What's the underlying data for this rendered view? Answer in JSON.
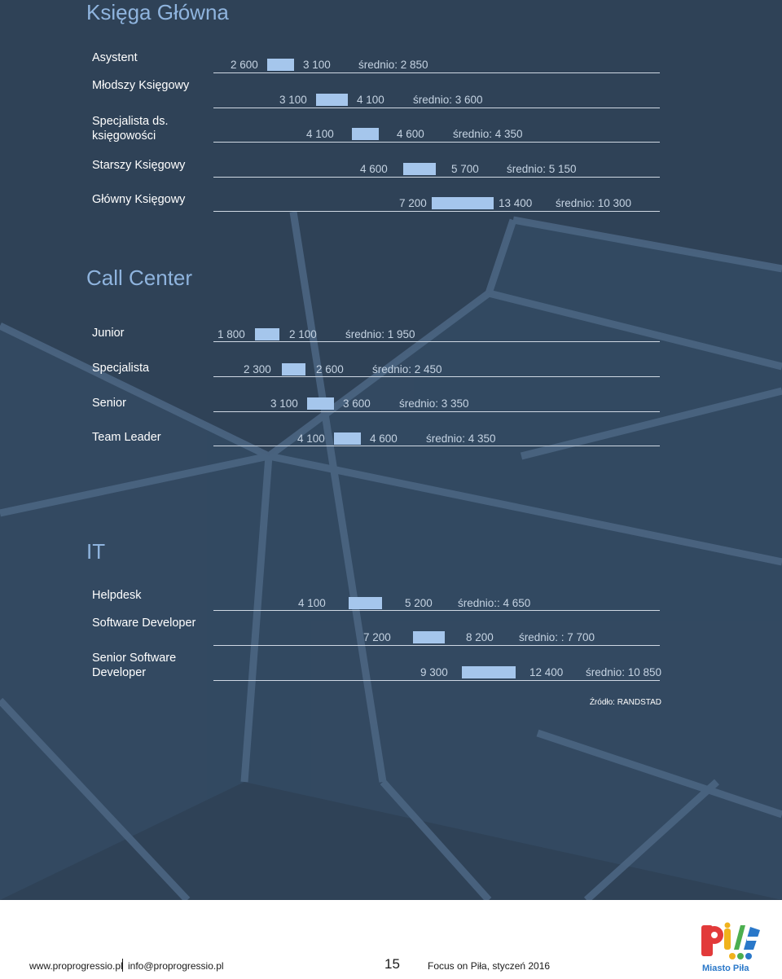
{
  "sections": [
    {
      "id": "ksiega",
      "title": "Księga Główna",
      "rows": [
        {
          "label": "Asystent",
          "min": "2 600",
          "max": "3 100",
          "avg": "średnio: 2 850",
          "min_value": 2600,
          "max_value": 3100
        },
        {
          "label": "Młodszy Księgowy",
          "min": "3 100",
          "max": "4 100",
          "avg": "średnio: 3 600",
          "min_value": 3100,
          "max_value": 4100
        },
        {
          "label": "Specjalista ds. księgowości",
          "min": "4 100",
          "max": "4 600",
          "avg": "średnio: 4 350",
          "min_value": 4100,
          "max_value": 4600
        },
        {
          "label": "Starszy Księgowy",
          "min": "4 600",
          "max": "5 700",
          "avg": "średnio: 5 150",
          "min_value": 4600,
          "max_value": 5700
        },
        {
          "label": "Główny Księgowy",
          "min": "7 200",
          "max": "13 400",
          "avg": "średnio: 10 300",
          "min_value": 7200,
          "max_value": 13400
        }
      ]
    },
    {
      "id": "callcenter",
      "title": "Call Center",
      "rows": [
        {
          "label": "Junior",
          "min": "1 800",
          "max": "2 100",
          "avg": "średnio: 1 950",
          "min_value": 1800,
          "max_value": 2100
        },
        {
          "label": "Specjalista",
          "min": "2 300",
          "max": "2 600",
          "avg": "średnio: 2 450",
          "min_value": 2300,
          "max_value": 2600
        },
        {
          "label": "Senior",
          "min": "3 100",
          "max": "3 600",
          "avg": "średnio: 3 350",
          "min_value": 3100,
          "max_value": 3600
        },
        {
          "label": "Team Leader",
          "min": "4 100",
          "max": "4 600",
          "avg": "średnio: 4 350",
          "min_value": 4100,
          "max_value": 4600
        }
      ]
    },
    {
      "id": "it",
      "title": "IT",
      "rows": [
        {
          "label": "Helpdesk",
          "min": "4 100",
          "max": "5 200",
          "avg": "średnio:: 4 650",
          "min_value": 4100,
          "max_value": 5200
        },
        {
          "label": "Software Developer",
          "min": "7 200",
          "max": "8 200",
          "avg": "średnio: : 7 700",
          "min_value": 7200,
          "max_value": 8200
        },
        {
          "label": "Senior Software Developer",
          "min": "9 300",
          "max": "12 400",
          "avg": "średnio: 10 850",
          "min_value": 9300,
          "max_value": 12400
        }
      ]
    }
  ],
  "source": "Źródło: RANDSTAD",
  "footer": {
    "website": "www.proprogressio.pl",
    "email": "info@proprogressio.pl",
    "page_number": "15",
    "publication": "Focus on Piła, styczeń 2016",
    "logo_text": "Miasto Piła"
  },
  "colors": {
    "background": "#2f4257",
    "bar": "#a5c6ec",
    "title": "#8fb4de",
    "values": "#c5d3e2"
  },
  "chart_data": [
    {
      "type": "bar",
      "title": "Księga Główna",
      "categories": [
        "Asystent",
        "Młodszy Księgowy",
        "Specjalista ds. księgowości",
        "Starszy Księgowy",
        "Główny Księgowy"
      ],
      "series": [
        {
          "name": "min",
          "values": [
            2600,
            3100,
            4100,
            4600,
            7200
          ]
        },
        {
          "name": "max",
          "values": [
            3100,
            4100,
            4600,
            5700,
            13400
          ]
        },
        {
          "name": "średnio",
          "values": [
            2850,
            3600,
            4350,
            5150,
            10300
          ]
        }
      ]
    },
    {
      "type": "bar",
      "title": "Call Center",
      "categories": [
        "Junior",
        "Specjalista",
        "Senior",
        "Team Leader"
      ],
      "series": [
        {
          "name": "min",
          "values": [
            1800,
            2300,
            3100,
            4100
          ]
        },
        {
          "name": "max",
          "values": [
            2100,
            2600,
            3600,
            4600
          ]
        },
        {
          "name": "średnio",
          "values": [
            1950,
            2450,
            3350,
            4350
          ]
        }
      ]
    },
    {
      "type": "bar",
      "title": "IT",
      "categories": [
        "Helpdesk",
        "Software Developer",
        "Senior Software Developer"
      ],
      "series": [
        {
          "name": "min",
          "values": [
            4100,
            7200,
            9300
          ]
        },
        {
          "name": "max",
          "values": [
            5200,
            8200,
            12400
          ]
        },
        {
          "name": "średnio",
          "values": [
            4650,
            7700,
            10850
          ]
        }
      ]
    }
  ]
}
